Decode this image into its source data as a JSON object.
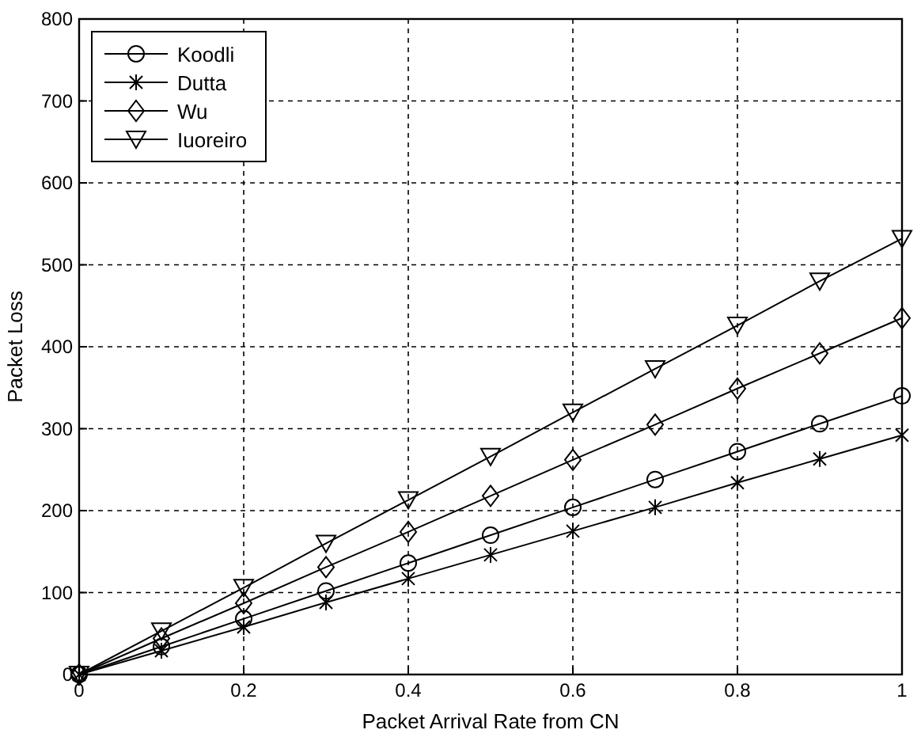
{
  "chart_data": {
    "type": "line",
    "xlabel": "Packet Arrival Rate from CN",
    "ylabel": "Packet Loss",
    "x": [
      0,
      0.1,
      0.2,
      0.3,
      0.4,
      0.5,
      0.6,
      0.7,
      0.8,
      0.9,
      1
    ],
    "series": [
      {
        "name": "Koodli",
        "color": "#000000",
        "marker": "circle",
        "values": [
          0,
          34,
          68,
          102,
          136,
          170,
          204,
          238,
          272,
          306,
          340
        ]
      },
      {
        "name": "Dutta",
        "color": "#000000",
        "marker": "cross",
        "values": [
          0,
          29,
          58,
          88,
          117,
          146,
          175,
          204,
          234,
          263,
          292
        ]
      },
      {
        "name": "Wu",
        "color": "#000000",
        "marker": "diamond",
        "values": [
          0,
          44,
          87,
          131,
          174,
          218,
          262,
          305,
          349,
          392,
          435
        ]
      },
      {
        "name": "Iuoreiro",
        "color": "#000000",
        "marker": "triangle",
        "values": [
          0,
          53,
          106,
          160,
          213,
          266,
          320,
          373,
          426,
          480,
          532
        ]
      }
    ],
    "xlim": [
      0,
      1
    ],
    "xticks": [
      0,
      0.2,
      0.4,
      0.6,
      0.8,
      1
    ],
    "ylim": [
      0,
      800
    ],
    "yticks": [
      0,
      100,
      200,
      300,
      400,
      500,
      600,
      700,
      800
    ],
    "grid": true,
    "legend": "top left",
    "line_style": "solid"
  }
}
